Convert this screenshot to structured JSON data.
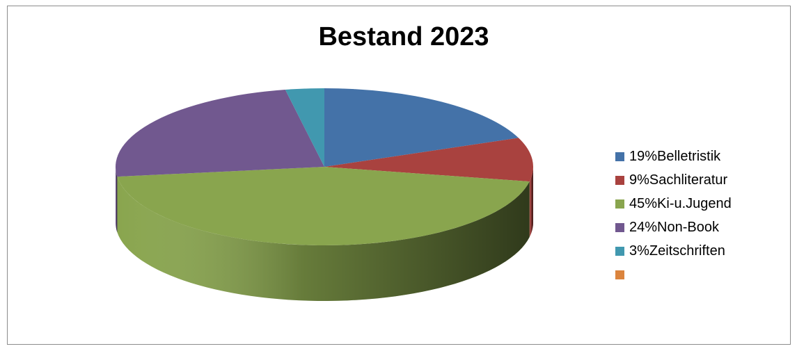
{
  "chart_data": {
    "type": "pie",
    "title": "Bestand 2023",
    "legend_position": "right",
    "slices": [
      {
        "label": "19%Belletristik",
        "value": 19,
        "color": "#4472A8"
      },
      {
        "label": "9%Sachliteratur",
        "value": 9,
        "color": "#A9423F"
      },
      {
        "label": "45%Ki-u.Jugend",
        "value": 45,
        "color": "#89A54E"
      },
      {
        "label": "24%Non-Book",
        "value": 24,
        "color": "#71588F"
      },
      {
        "label": "3%Zeitschriften",
        "value": 3,
        "color": "#4198AF"
      },
      {
        "label": "",
        "value": 0,
        "color": "#DB843D"
      }
    ]
  }
}
